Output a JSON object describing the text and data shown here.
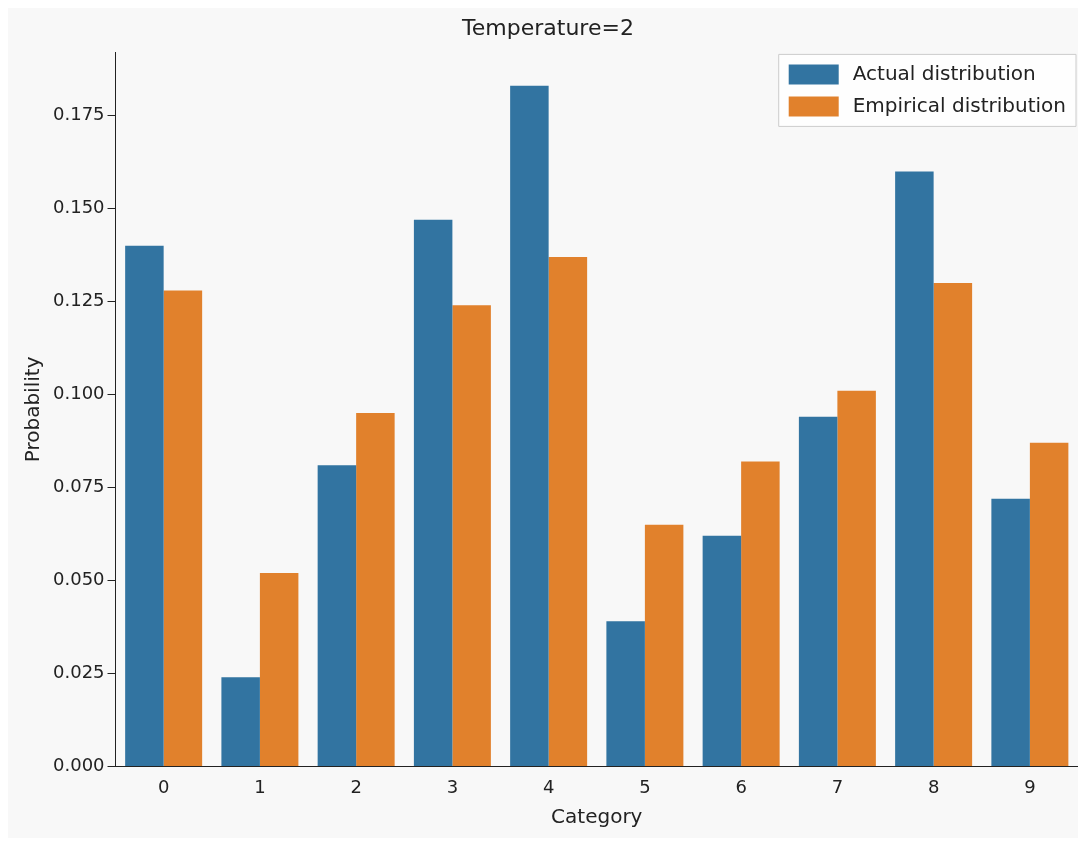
{
  "chart_data": {
    "type": "bar",
    "title": "Temperature=2",
    "xlabel": "Category",
    "ylabel": "Probability",
    "categories": [
      "0",
      "1",
      "2",
      "3",
      "4",
      "5",
      "6",
      "7",
      "8",
      "9"
    ],
    "series": [
      {
        "name": "Actual distribution",
        "color": "#3274a1",
        "values": [
          0.14,
          0.024,
          0.081,
          0.147,
          0.183,
          0.039,
          0.062,
          0.094,
          0.16,
          0.072
        ]
      },
      {
        "name": "Empirical distribution",
        "color": "#e1812c",
        "values": [
          0.128,
          0.052,
          0.095,
          0.124,
          0.137,
          0.065,
          0.082,
          0.101,
          0.13,
          0.087
        ]
      }
    ],
    "ylim": [
      0,
      0.192
    ],
    "yticks": [
      {
        "value": 0,
        "label": "0.000"
      },
      {
        "value": 0.025,
        "label": "0.025"
      },
      {
        "value": 0.05,
        "label": "0.050"
      },
      {
        "value": 0.075,
        "label": "0.075"
      },
      {
        "value": 0.1,
        "label": "0.100"
      },
      {
        "value": 0.125,
        "label": "0.125"
      },
      {
        "value": 0.15,
        "label": "0.150"
      },
      {
        "value": 0.175,
        "label": "0.175"
      }
    ],
    "grid": false,
    "legend": "top right"
  }
}
